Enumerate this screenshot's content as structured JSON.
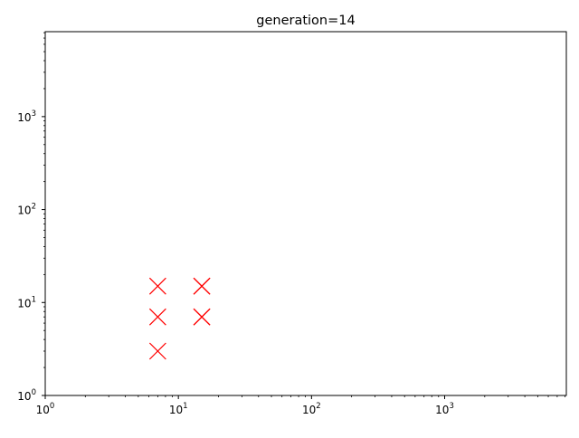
{
  "chart_data": {
    "type": "scatter",
    "title": "generation=14",
    "xlabel": "",
    "ylabel": "",
    "xscale": "log",
    "yscale": "log",
    "xlim": [
      1,
      8200
    ],
    "ylim": [
      1,
      8200
    ],
    "grid": false,
    "x_ticks": [
      {
        "base": "10",
        "exp": "0"
      },
      {
        "base": "10",
        "exp": "1"
      },
      {
        "base": "10",
        "exp": "2"
      },
      {
        "base": "10",
        "exp": "3"
      }
    ],
    "y_ticks": [
      {
        "base": "10",
        "exp": "0"
      },
      {
        "base": "10",
        "exp": "1"
      },
      {
        "base": "10",
        "exp": "2"
      },
      {
        "base": "10",
        "exp": "3"
      }
    ],
    "series": [
      {
        "marker": "x",
        "color": "#ff0000",
        "points": [
          {
            "x": 7,
            "y": 3
          },
          {
            "x": 7,
            "y": 7
          },
          {
            "x": 7,
            "y": 15
          },
          {
            "x": 15,
            "y": 7
          },
          {
            "x": 15,
            "y": 7
          },
          {
            "x": 15,
            "y": 15
          },
          {
            "x": 15,
            "y": 15
          }
        ]
      }
    ]
  }
}
